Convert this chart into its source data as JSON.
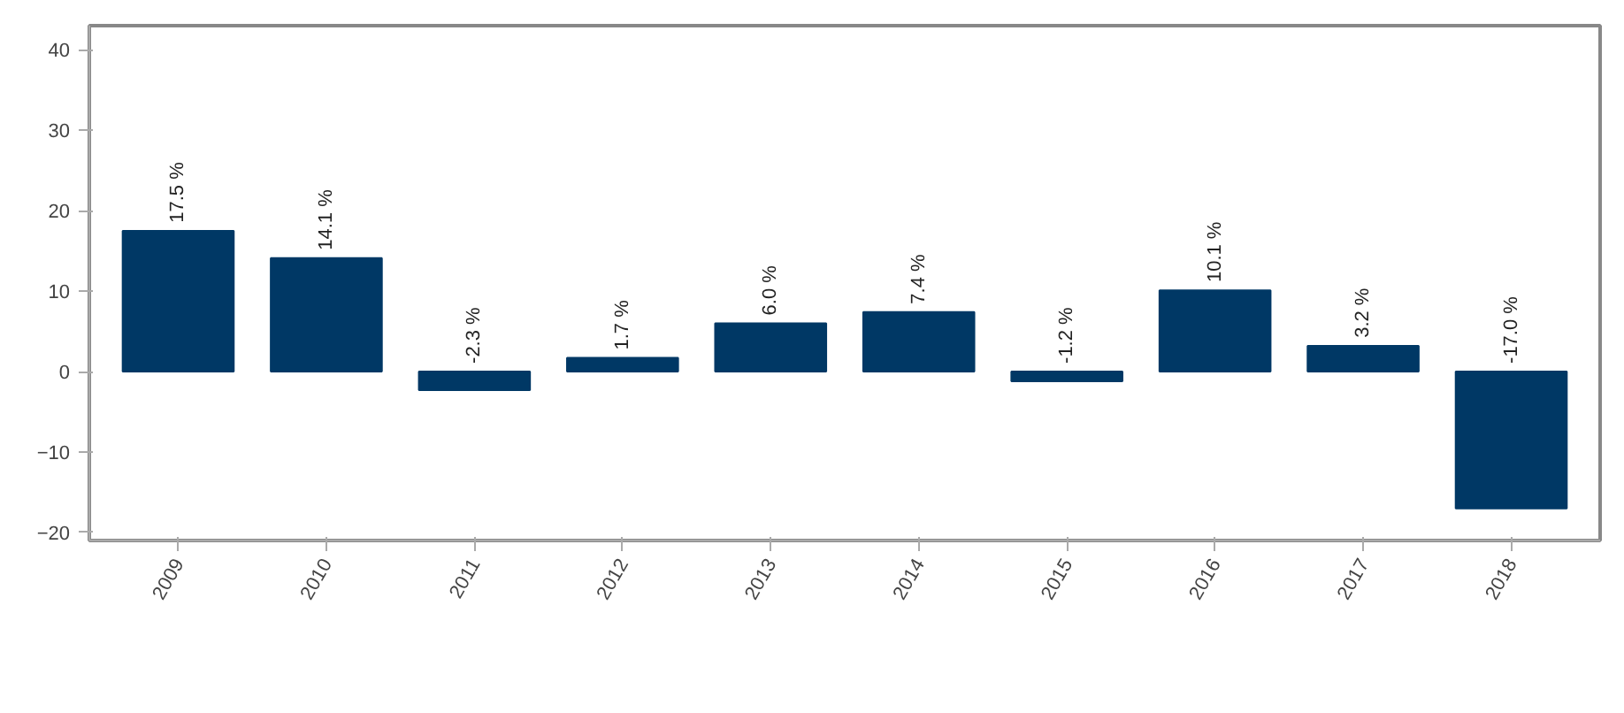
{
  "chart_data": {
    "type": "bar",
    "categories": [
      "2009",
      "2010",
      "2011",
      "2012",
      "2013",
      "2014",
      "2015",
      "2016",
      "2017",
      "2018"
    ],
    "series": [
      {
        "color": "#003865",
        "values": [
          17.5,
          14.1,
          -2.3,
          1.7,
          6.0,
          7.4,
          -1.2,
          10.1,
          3.2,
          -17.0
        ],
        "value_labels": [
          "17.5 %",
          "14.1 %",
          "-2.3 %",
          "1.7 %",
          "6.0 %",
          "7.4 %",
          "-1.2 %",
          "10.1 %",
          "3.2 %",
          "-17.0 %"
        ]
      }
    ],
    "ylim": [
      -21,
      43
    ],
    "yticks": [
      -20,
      -10,
      0,
      10,
      20,
      30,
      40
    ],
    "grid": false
  }
}
